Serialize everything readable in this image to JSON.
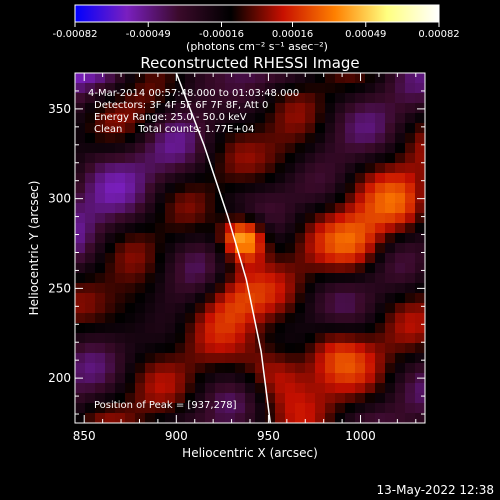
{
  "chart_data": {
    "type": "heatmap",
    "title": "Reconstructed RHESSI Image",
    "xlabel": "Heliocentric X (arcsec)",
    "ylabel": "Heliocentric Y (arcsec)",
    "xlim": [
      845,
      1035
    ],
    "ylim": [
      175,
      370
    ],
    "x_ticks": [
      850,
      900,
      950,
      1000
    ],
    "y_ticks": [
      200,
      250,
      300,
      350
    ],
    "x_tick_labels": [
      "850",
      "900",
      "950",
      "1000"
    ],
    "y_tick_labels": [
      "200",
      "250",
      "300",
      "350"
    ],
    "grid": false,
    "colorbar": {
      "range": [
        -0.00082,
        0.00082
      ],
      "tick_labels": [
        "-0.00082",
        "-0.00049",
        "-0.00016",
        "0.00016",
        "0.00049",
        "0.00082"
      ],
      "unit_label": "(photons cm⁻² s⁻¹ asec⁻²)",
      "colors": [
        "#0000ff",
        "#7a1fbf",
        "#3a0a2a",
        "#000000",
        "#c81000",
        "#ff8000",
        "#ffff80",
        "#ffffff"
      ]
    },
    "info_lines": [
      "4-Mar-2014 00:57:48.000 to 01:03:48.000",
      "Detectors: 3F 4F 5F 6F 7F 8F, Att 0",
      "Energy Range: 25.0 - 50.0 keV",
      "Clean     Total counts: 1.77E+04"
    ],
    "peak_label": "Position of Peak = [937,278]",
    "peak": {
      "x": 937,
      "y": 278
    },
    "limb_curve": [
      {
        "x": 900,
        "y": 370
      },
      {
        "x": 915,
        "y": 330
      },
      {
        "x": 928,
        "y": 290
      },
      {
        "x": 938,
        "y": 255
      },
      {
        "x": 946,
        "y": 215
      },
      {
        "x": 951,
        "y": 175
      }
    ],
    "sources": [
      {
        "x": 937,
        "y": 278,
        "v": 0.00082
      },
      {
        "x": 955,
        "y": 205,
        "v": 0.00045
      },
      {
        "x": 1000,
        "y": 275,
        "v": 0.00035
      },
      {
        "x": 1025,
        "y": 295,
        "v": 0.0003
      },
      {
        "x": 880,
        "y": 235,
        "v": 0.0003
      },
      {
        "x": 930,
        "y": 245,
        "v": 0.0003
      },
      {
        "x": 985,
        "y": 215,
        "v": 0.0003
      },
      {
        "x": 880,
        "y": 345,
        "v": 0.00025
      },
      {
        "x": 925,
        "y": 355,
        "v": 0.00025
      },
      {
        "x": 965,
        "y": 320,
        "v": 0.0002
      }
    ]
  },
  "footer": {
    "timestamp": "13-May-2022 12:38"
  }
}
